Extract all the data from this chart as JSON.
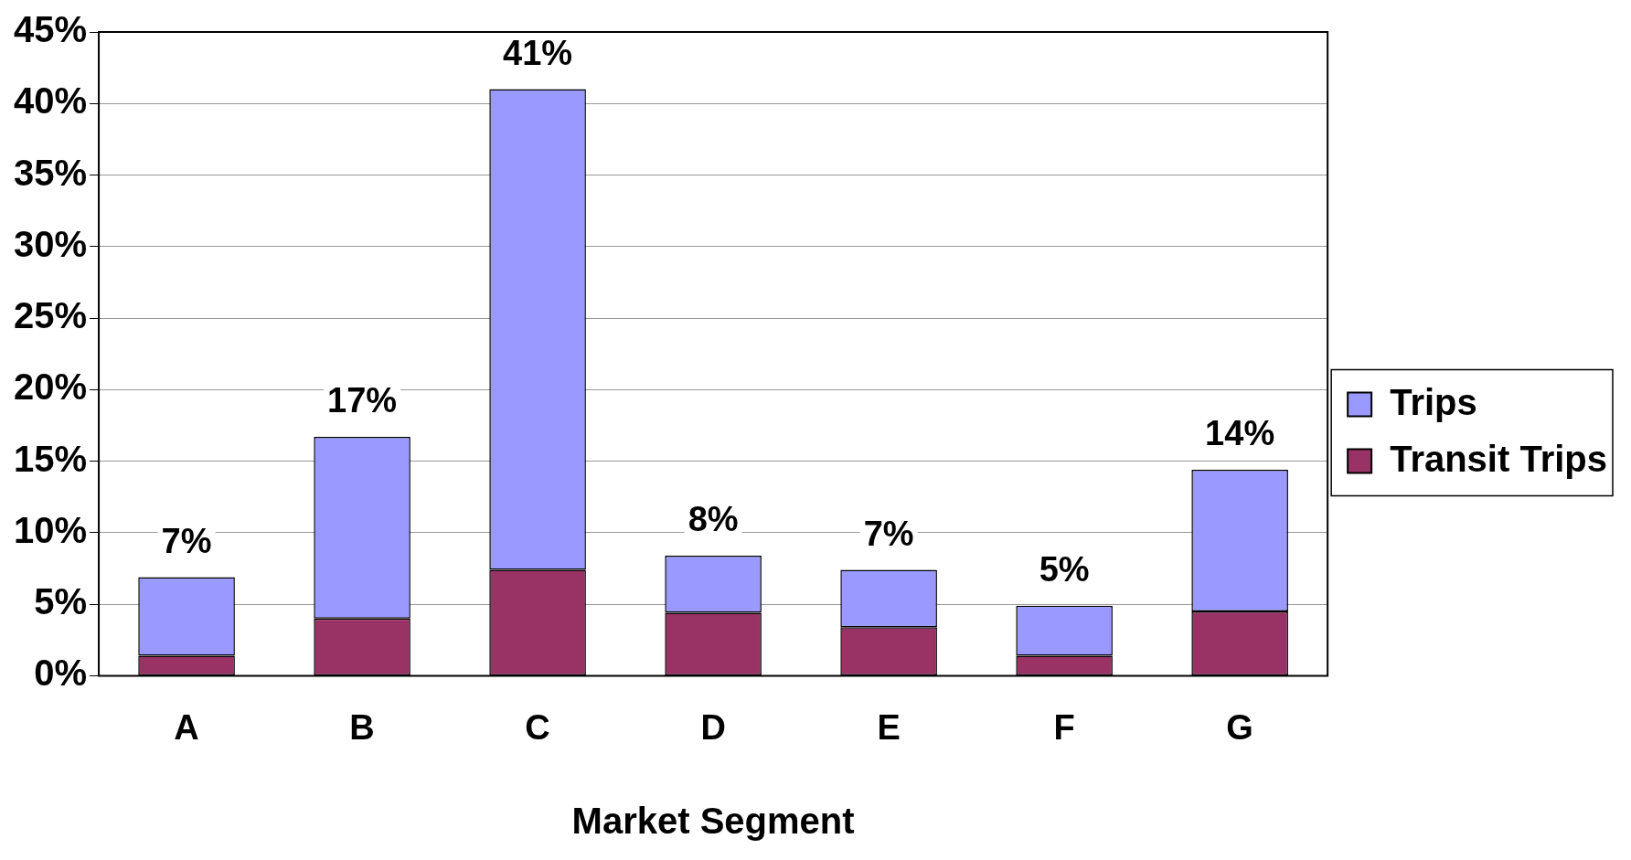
{
  "chart_data": {
    "type": "bar",
    "xlabel": "Market Segment",
    "categories": [
      "A",
      "B",
      "C",
      "D",
      "E",
      "F",
      "G"
    ],
    "stacked": true,
    "series": [
      {
        "name": "Transit Trips",
        "color": "#993366",
        "values": [
          1.4,
          4.0,
          7.4,
          4.4,
          3.4,
          1.4,
          4.5
        ]
      },
      {
        "name": "Trips",
        "color": "#9999ff",
        "values": [
          5.5,
          12.7,
          33.6,
          4.0,
          4.0,
          3.5,
          9.9
        ]
      }
    ],
    "totals": [
      "7%",
      "17%",
      "41%",
      "8%",
      "7%",
      "5%",
      "14%"
    ],
    "ylim": [
      0,
      45
    ],
    "yticks": [
      {
        "value": 0,
        "label": "0%"
      },
      {
        "value": 5,
        "label": "5%"
      },
      {
        "value": 10,
        "label": "10%"
      },
      {
        "value": 15,
        "label": "15%"
      },
      {
        "value": 20,
        "label": "20%"
      },
      {
        "value": 25,
        "label": "25%"
      },
      {
        "value": 30,
        "label": "30%"
      },
      {
        "value": 35,
        "label": "35%"
      },
      {
        "value": 40,
        "label": "40%"
      },
      {
        "value": 45,
        "label": "45%"
      }
    ],
    "grid": "y",
    "legend": "right"
  }
}
